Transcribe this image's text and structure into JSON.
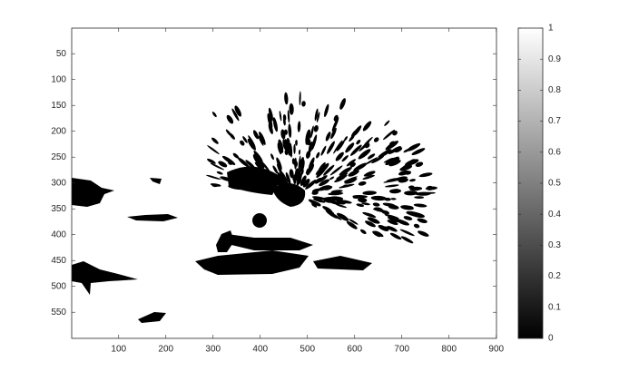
{
  "chart_data": {
    "type": "image",
    "colormap": "gray",
    "xlim": [
      0.5,
      900.5
    ],
    "xticks": [
      100,
      200,
      300,
      400,
      500,
      600,
      700,
      800,
      900
    ],
    "ylim": [
      0.5,
      600.5
    ],
    "yticks": [
      50,
      100,
      150,
      200,
      250,
      300,
      350,
      400,
      450,
      500,
      550
    ],
    "y_reversed": true,
    "clim": [
      0,
      1
    ],
    "cticks": [
      0,
      0.1,
      0.2,
      0.3,
      0.4,
      0.5,
      0.6,
      0.7,
      0.8,
      0.9,
      1
    ]
  }
}
